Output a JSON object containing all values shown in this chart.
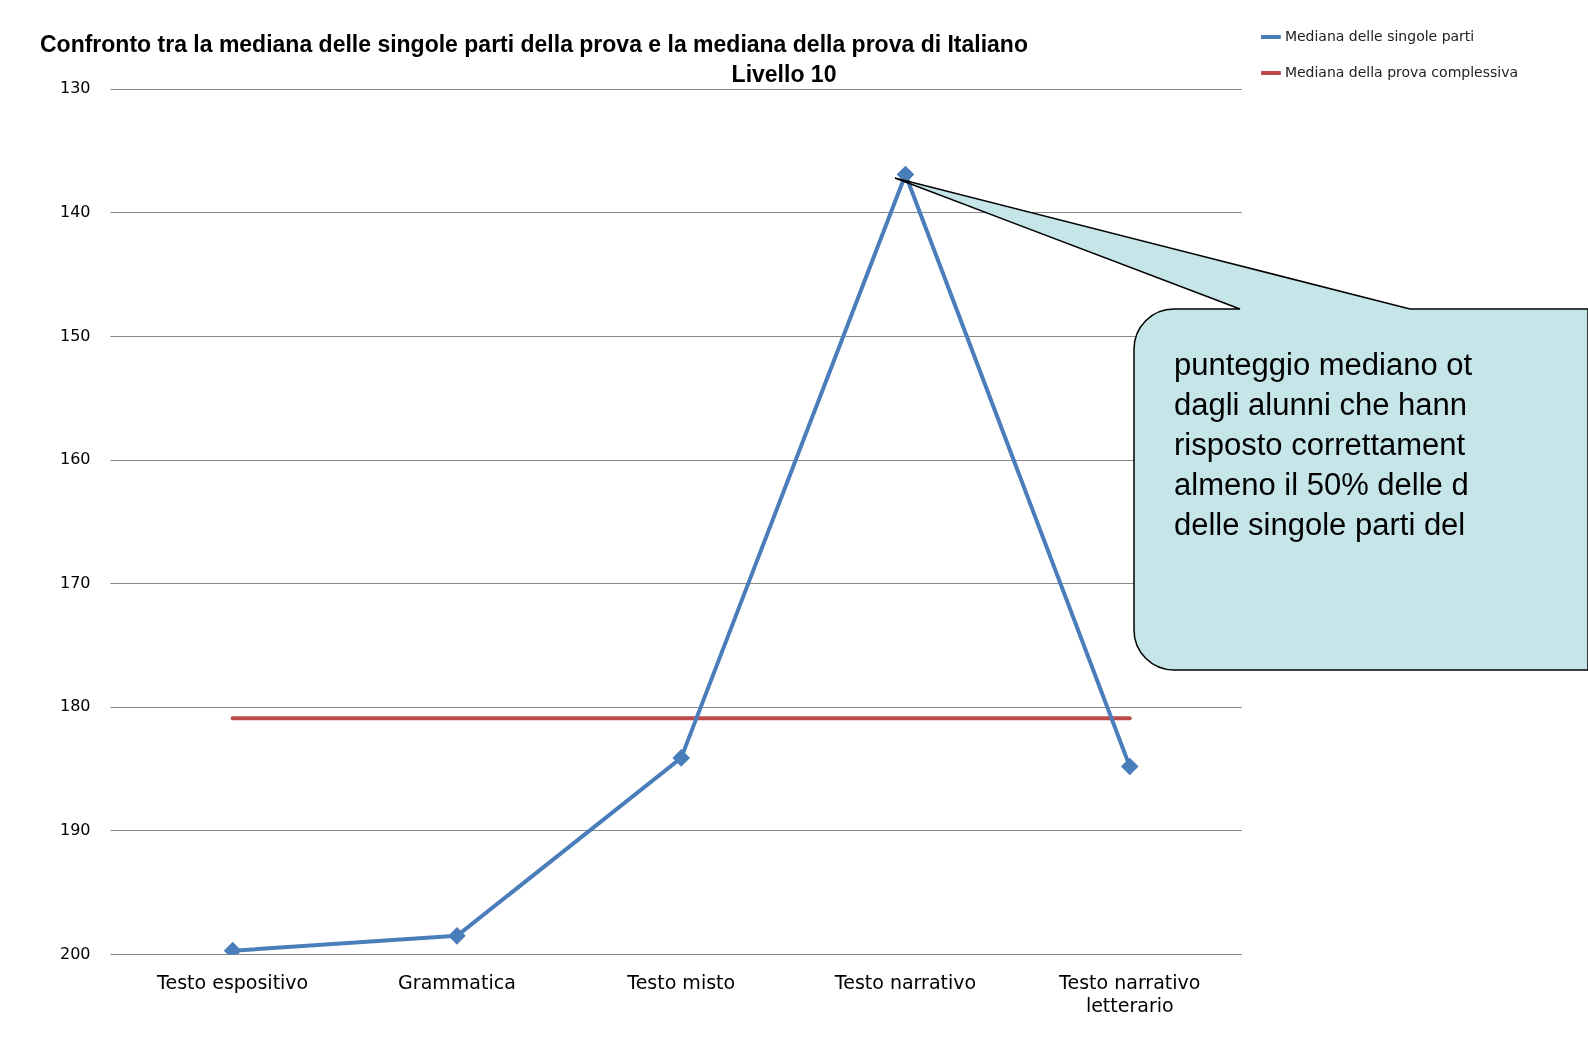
{
  "chart_data": {
    "type": "line",
    "title": "Confronto tra la mediana delle singole parti della prova e la mediana della prova di Italiano",
    "subtitle": "Livello 10",
    "categories": [
      "Testo espositivo",
      "Grammatica",
      "Testo misto",
      "Testo narrativo",
      "Testo narrativo letterario"
    ],
    "series": [
      {
        "name": "Mediana delle singole parti",
        "color": "#4a7ebb",
        "marker": "diamond",
        "values": [
          199.7,
          198.5,
          184.1,
          136.9,
          184.8
        ]
      },
      {
        "name": "Mediana della prova complessiva",
        "color": "#be4b48",
        "marker": "none",
        "values": [
          180.9,
          180.9,
          180.9,
          180.9,
          180.9
        ]
      }
    ],
    "ylim": [
      200,
      130
    ],
    "yticks": [
      130,
      140,
      150,
      160,
      170,
      180,
      190,
      200
    ],
    "grid": "y",
    "legend": "top right",
    "annotations": [
      "punteggio mediano ot\ndagli alunni che hann\nrisposto correttament\nalmeno il 50% delle d\ndelle singole parti del"
    ]
  }
}
